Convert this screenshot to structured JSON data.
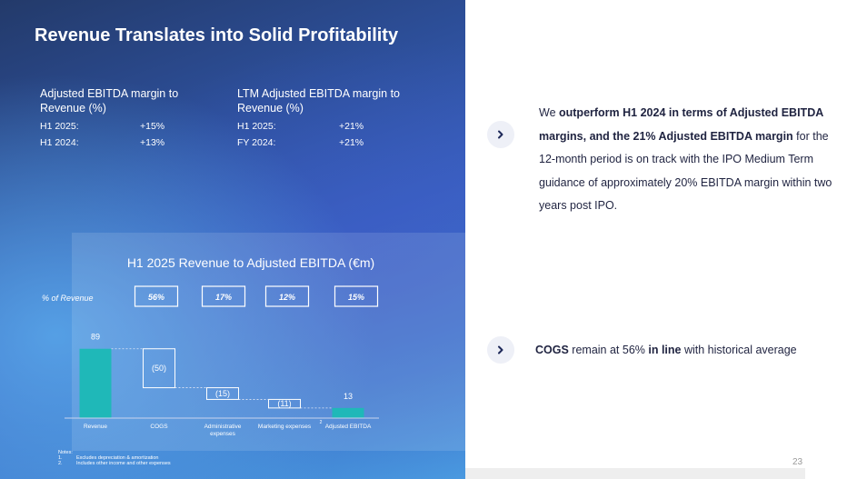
{
  "title": "Revenue Translates into Solid Profitability",
  "kpis": [
    {
      "heading": "Adjusted EBITDA margin to Revenue (%)",
      "rows": [
        {
          "label": "H1 2025:",
          "value": "+15%"
        },
        {
          "label": "H1 2024:",
          "value": "+13%"
        }
      ]
    },
    {
      "heading": "LTM Adjusted EBITDA margin to Revenue (%)",
      "rows": [
        {
          "label": "H1 2025:",
          "value": "+21%"
        },
        {
          "label": "FY 2024:",
          "value": "+21%"
        }
      ]
    }
  ],
  "chart_data": {
    "type": "bar",
    "subtype": "waterfall",
    "title": "H1 2025 Revenue to Adjusted EBITDA (€m)",
    "categories": [
      "Revenue",
      "COGS",
      "Administrative expenses",
      "Marketing expenses",
      "Adjusted EBITDA"
    ],
    "values": [
      89,
      -50,
      -15,
      -11,
      13
    ],
    "value_labels": [
      "89",
      "(50)",
      "(15)",
      "(11)",
      "13"
    ],
    "pct_label": "% of Revenue",
    "pct_values": [
      "56%",
      "17%",
      "12%",
      "15%"
    ],
    "footnote_markers": [
      "",
      "",
      "",
      "2",
      ""
    ],
    "colors": {
      "total": "#1fb8b8",
      "step": "#ffffff"
    }
  },
  "notes": {
    "heading": "Notes:",
    "items": [
      {
        "num": "1.",
        "text": "Excludes depreciation & amortization"
      },
      {
        "num": "2.",
        "text": "Includes other income and other expenses"
      }
    ]
  },
  "points": {
    "p1": {
      "t1": "We ",
      "b1": "outperform H1 2024 in terms of Adjusted EBITDA margins, and the 21% Adjusted EBITDA margin",
      "t2": " for the 12-month period is on track with the IPO Medium Term guidance of approximately 20% EBITDA margin within two years post IPO."
    },
    "p2": {
      "b1": "COGS",
      "t1": " remain at 56% ",
      "b2": "in line",
      "t2": " with historical average"
    }
  },
  "page_number": "23"
}
